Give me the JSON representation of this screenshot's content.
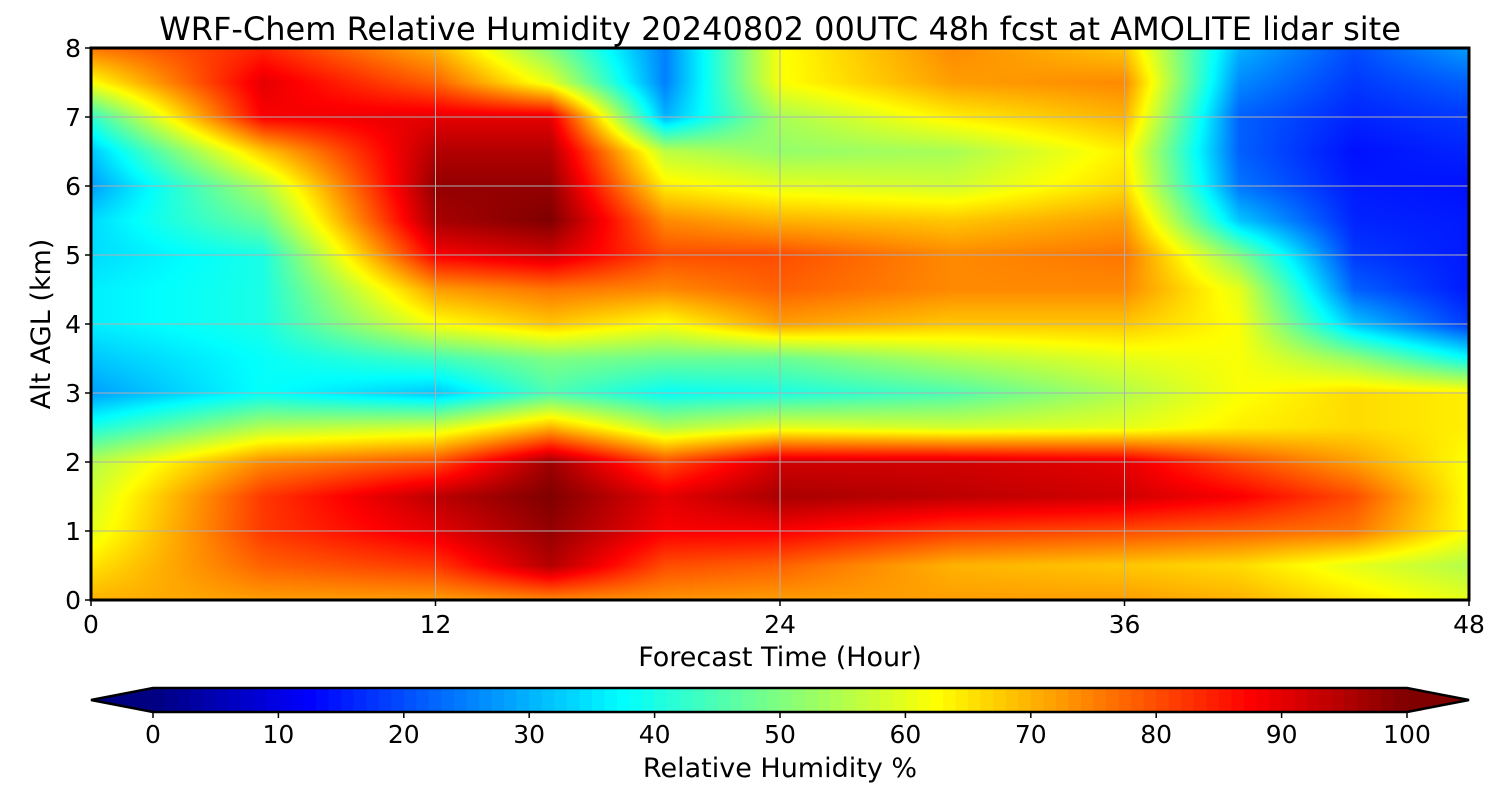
{
  "chart_data": {
    "type": "heatmap",
    "title": "WRF-Chem Relative Humidity 20240802 00UTC 48h fcst at AMOLITE lidar site",
    "xlabel": "Forecast Time (Hour)",
    "ylabel": "Alt AGL (km)",
    "xlim": [
      0,
      48
    ],
    "ylim": [
      0,
      8
    ],
    "x_ticks": [
      0,
      12,
      24,
      36,
      48
    ],
    "y_ticks": [
      0,
      1,
      2,
      3,
      4,
      5,
      6,
      7,
      8
    ],
    "grid": true,
    "colormap": "jet",
    "x": [
      0,
      6,
      12,
      16,
      20,
      24,
      30,
      36,
      40,
      44,
      48
    ],
    "y": [
      0,
      0.5,
      1,
      1.5,
      2,
      2.5,
      3,
      3.5,
      4,
      4.5,
      5,
      5.5,
      6,
      6.5,
      7,
      7.5,
      8
    ],
    "z": [
      [
        70,
        72,
        72,
        74,
        73,
        72,
        72,
        72,
        70,
        65,
        60
      ],
      [
        65,
        78,
        82,
        95,
        80,
        78,
        70,
        68,
        66,
        60,
        55
      ],
      [
        60,
        82,
        90,
        98,
        88,
        88,
        82,
        80,
        78,
        76,
        62
      ],
      [
        58,
        82,
        94,
        100,
        90,
        96,
        94,
        92,
        88,
        80,
        62
      ],
      [
        55,
        74,
        80,
        97,
        80,
        92,
        92,
        90,
        80,
        72,
        62
      ],
      [
        40,
        55,
        58,
        70,
        55,
        60,
        58,
        60,
        64,
        66,
        64
      ],
      [
        28,
        38,
        32,
        45,
        38,
        40,
        45,
        55,
        62,
        66,
        64
      ],
      [
        32,
        38,
        44,
        50,
        48,
        48,
        55,
        60,
        62,
        52,
        38
      ],
      [
        36,
        40,
        62,
        68,
        62,
        72,
        68,
        68,
        62,
        32,
        18
      ],
      [
        36,
        40,
        72,
        76,
        74,
        78,
        74,
        74,
        60,
        22,
        15
      ],
      [
        34,
        40,
        88,
        92,
        80,
        80,
        74,
        76,
        50,
        18,
        15
      ],
      [
        34,
        48,
        96,
        100,
        74,
        70,
        68,
        72,
        32,
        16,
        15
      ],
      [
        28,
        55,
        98,
        98,
        64,
        60,
        58,
        66,
        24,
        15,
        14
      ],
      [
        32,
        68,
        95,
        95,
        56,
        52,
        54,
        64,
        22,
        14,
        16
      ],
      [
        42,
        88,
        90,
        90,
        30,
        54,
        64,
        70,
        22,
        16,
        18
      ],
      [
        62,
        90,
        78,
        60,
        25,
        62,
        72,
        74,
        26,
        18,
        22
      ],
      [
        76,
        84,
        70,
        50,
        25,
        62,
        74,
        68,
        30,
        20,
        28
      ]
    ],
    "colorbar": {
      "label": "Relative Humidity %",
      "min": 0,
      "max": 100,
      "ticks": [
        0,
        10,
        20,
        30,
        40,
        50,
        60,
        70,
        80,
        90,
        100
      ],
      "extend": "both",
      "orientation": "horizontal"
    }
  }
}
